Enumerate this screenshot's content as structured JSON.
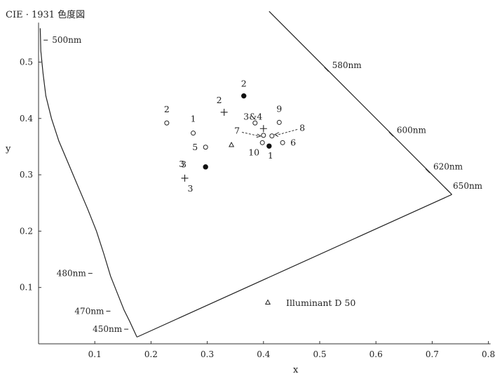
{
  "chart_data": {
    "type": "scatter",
    "title": "CIE · 1931 色度図",
    "xlabel": "x",
    "ylabel": "y",
    "xlim": [
      0.0,
      0.8
    ],
    "ylim": [
      0.0,
      0.57
    ],
    "x_ticks": [
      "0.1",
      "0.2",
      "0.3",
      "0.4",
      "0.5",
      "0.6",
      "0.7",
      "0.8"
    ],
    "x_tick_values": [
      0.1,
      0.2,
      0.3,
      0.4,
      0.5,
      0.6,
      0.7,
      0.8
    ],
    "y_ticks": [
      "0.1",
      "0.2",
      "0.3",
      "0.4",
      "0.5"
    ],
    "y_tick_values": [
      0.1,
      0.2,
      0.3,
      0.4,
      0.5
    ],
    "grid": false,
    "spectral_locus": [
      [
        0.003,
        0.56
      ],
      [
        0.004,
        0.52
      ],
      [
        0.008,
        0.48
      ],
      [
        0.013,
        0.44
      ],
      [
        0.023,
        0.4
      ],
      [
        0.036,
        0.36
      ],
      [
        0.053,
        0.32
      ],
      [
        0.07,
        0.28
      ],
      [
        0.087,
        0.24
      ],
      [
        0.103,
        0.2
      ],
      [
        0.116,
        0.16
      ],
      [
        0.128,
        0.12
      ],
      [
        0.14,
        0.09
      ],
      [
        0.152,
        0.06
      ],
      [
        0.162,
        0.04
      ],
      [
        0.175,
        0.012
      ]
    ],
    "purple_line": [
      [
        0.175,
        0.012
      ],
      [
        0.735,
        0.265
      ]
    ],
    "red_edge": [
      [
        0.735,
        0.265
      ],
      [
        0.41,
        0.59
      ]
    ],
    "wavelength_marks": [
      {
        "label": "500nm",
        "x": 0.009,
        "y": 0.539
      },
      {
        "label": "480nm",
        "x": 0.092,
        "y": 0.125
      },
      {
        "label": "470nm",
        "x": 0.124,
        "y": 0.058
      },
      {
        "label": "450nm",
        "x": 0.156,
        "y": 0.026
      },
      {
        "label": "580nm",
        "x": 0.512,
        "y": 0.487
      },
      {
        "label": "600nm",
        "x": 0.627,
        "y": 0.372
      },
      {
        "label": "620nm",
        "x": 0.692,
        "y": 0.307
      },
      {
        "label": "650nm",
        "x": 0.727,
        "y": 0.273
      }
    ],
    "series": [
      {
        "marker": "open-circle",
        "points": [
          {
            "label": "2",
            "x": 0.228,
            "y": 0.392
          },
          {
            "label": "1",
            "x": 0.275,
            "y": 0.374
          },
          {
            "label": "5",
            "x": 0.297,
            "y": 0.349
          },
          {
            "label": "",
            "x": 0.385,
            "y": 0.392
          },
          {
            "label": "9",
            "x": 0.428,
            "y": 0.393
          },
          {
            "label": "",
            "x": 0.4,
            "y": 0.37
          },
          {
            "label": "",
            "x": 0.415,
            "y": 0.369
          },
          {
            "label": "10",
            "x": 0.398,
            "y": 0.357
          },
          {
            "label": "6",
            "x": 0.434,
            "y": 0.357
          }
        ]
      },
      {
        "marker": "filled-circle",
        "points": [
          {
            "label": "2",
            "x": 0.365,
            "y": 0.44
          },
          {
            "label": "3",
            "x": 0.297,
            "y": 0.314
          },
          {
            "label": "1",
            "x": 0.41,
            "y": 0.351
          }
        ]
      },
      {
        "marker": "plus",
        "points": [
          {
            "label": "2",
            "x": 0.33,
            "y": 0.411
          },
          {
            "label": "3&4",
            "x": 0.4,
            "y": 0.382
          },
          {
            "label": "3",
            "x": 0.26,
            "y": 0.294
          }
        ]
      },
      {
        "marker": "triangle",
        "points": [
          {
            "label": "",
            "x": 0.343,
            "y": 0.353
          }
        ]
      }
    ],
    "extra_labels": [
      {
        "label": "3",
        "x": 0.258,
        "y": 0.318
      },
      {
        "label": "7",
        "x": 0.353,
        "y": 0.378
      },
      {
        "label": "8",
        "x": 0.469,
        "y": 0.383
      }
    ],
    "legend": {
      "marker": "triangle",
      "text": "Illuminant D 50",
      "position": "bottom-right"
    }
  }
}
